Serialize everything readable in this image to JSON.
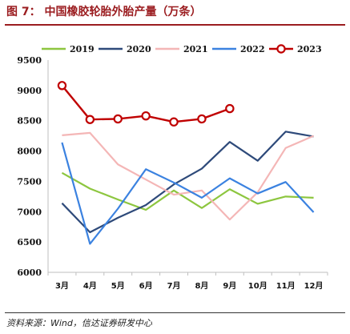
{
  "figure": {
    "title": "图 7： 中国橡胶轮胎外胎产量（万条）",
    "source": "资料来源：Wind，信达证券研发中心"
  },
  "chart_data": {
    "type": "line",
    "categories": [
      "3月",
      "4月",
      "5月",
      "6月",
      "7月",
      "8月",
      "9月",
      "10月",
      "11月",
      "12月"
    ],
    "ylim": [
      6000,
      9500
    ],
    "yticks": [
      6000,
      6500,
      7000,
      7500,
      8000,
      8500,
      9000,
      9500
    ],
    "grid": false,
    "legend_position": "top",
    "series": [
      {
        "name": "2019",
        "color": "#8dc63f",
        "marker": "none",
        "values": [
          7640,
          7380,
          7200,
          7030,
          7350,
          7060,
          7370,
          7130,
          7250,
          7230
        ]
      },
      {
        "name": "2020",
        "color": "#2e4a7a",
        "marker": "none",
        "values": [
          7140,
          6660,
          6900,
          7110,
          7450,
          7710,
          8150,
          7840,
          8320,
          8240
        ]
      },
      {
        "name": "2021",
        "color": "#f4b6b6",
        "marker": "none",
        "values": [
          8260,
          8300,
          7780,
          7530,
          7280,
          7350,
          6870,
          7320,
          8050,
          8250
        ]
      },
      {
        "name": "2022",
        "color": "#3b82e0",
        "marker": "none",
        "values": [
          8140,
          6470,
          7050,
          7700,
          7480,
          7230,
          7550,
          7300,
          7490,
          6990
        ]
      },
      {
        "name": "2023",
        "color": "#c00000",
        "marker": "circle",
        "values": [
          9080,
          8520,
          8530,
          8580,
          8480,
          8530,
          8700,
          null,
          null,
          null
        ]
      }
    ]
  }
}
